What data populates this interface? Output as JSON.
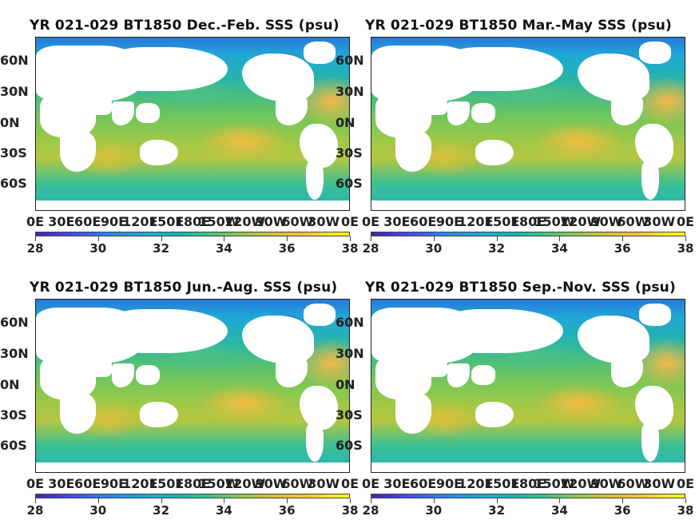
{
  "panels": [
    {
      "title": "YR 021-029 BT1850 Dec.-Feb. SSS (psu)"
    },
    {
      "title": "YR 021-029 BT1850 Mar.-May SSS (psu)"
    },
    {
      "title": "YR 021-029 BT1850 Jun.-Aug. SSS (psu)"
    },
    {
      "title": "YR 021-029 BT1850 Sep.-Nov. SSS (psu)"
    }
  ],
  "lat_ticks": [
    "60N",
    "30N",
    "0N",
    "30S",
    "60S"
  ],
  "lon_ticks": [
    "0E",
    "30E",
    "60E",
    "90E",
    "120E",
    "150E",
    "180E",
    "150W",
    "120W",
    "90W",
    "60W",
    "30W",
    "0E"
  ],
  "colorbar_ticks": [
    "28",
    "30",
    "32",
    "34",
    "36",
    "38"
  ],
  "chart_data": {
    "type": "heatmap",
    "variable": "SSS (psu)",
    "seasons": [
      "Dec.-Feb.",
      "Mar.-May",
      "Jun.-Aug.",
      "Sep.-Nov."
    ],
    "colorbar_range": [
      28,
      38
    ],
    "colormap": "parula",
    "colors": {
      "low": "#3e26a8",
      "mid_low": "#1ea8d8",
      "mid": "#2ab7a0",
      "mid_high": "#a8c93e",
      "high": "#f9fb0e"
    }
  }
}
